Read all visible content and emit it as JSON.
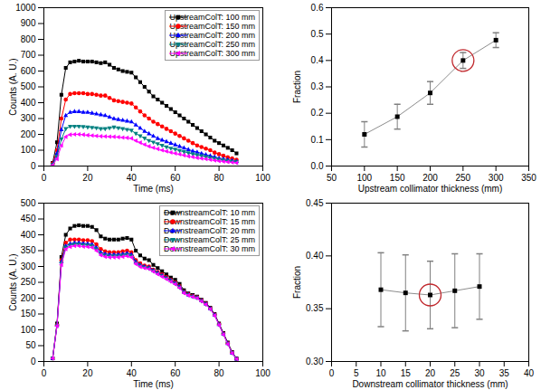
{
  "chart_data": [
    {
      "type": "line",
      "x_label": "Time (ms)",
      "y_label": "Counts (A. U.)",
      "xlim": [
        0,
        100
      ],
      "xticks": [
        0,
        20,
        40,
        60,
        80,
        100
      ],
      "ylim": [
        0,
        1000
      ],
      "yticks": [
        0,
        100,
        200,
        300,
        400,
        500,
        600,
        700,
        800,
        900,
        1000
      ],
      "grid": false,
      "legend": "top-right",
      "x": [
        4,
        6,
        8,
        10,
        12,
        14,
        16,
        18,
        20,
        22,
        24,
        26,
        28,
        30,
        32,
        34,
        36,
        38,
        40,
        42,
        44,
        46,
        48,
        50,
        52,
        54,
        56,
        58,
        60,
        62,
        64,
        66,
        68,
        70,
        72,
        74,
        76,
        78,
        80,
        82,
        84,
        86,
        88
      ],
      "series": [
        {
          "name": "UpstreamColT: 100 mm",
          "color": "#000000",
          "marker": "square",
          "values": [
            20,
            150,
            450,
            620,
            655,
            660,
            665,
            660,
            660,
            660,
            655,
            650,
            655,
            640,
            620,
            610,
            600,
            595,
            590,
            560,
            530,
            500,
            470,
            440,
            420,
            400,
            380,
            360,
            340,
            320,
            300,
            280,
            260,
            240,
            220,
            200,
            180,
            160,
            145,
            130,
            115,
            100,
            80
          ]
        },
        {
          "name": "UpstreamColT: 150 mm",
          "color": "#ff0000",
          "marker": "circle",
          "values": [
            15,
            100,
            300,
            420,
            455,
            460,
            460,
            460,
            455,
            455,
            450,
            445,
            445,
            430,
            415,
            410,
            405,
            400,
            395,
            370,
            345,
            320,
            300,
            280,
            265,
            250,
            235,
            220,
            205,
            190,
            175,
            160,
            145,
            130,
            120,
            110,
            100,
            85,
            75,
            65,
            55,
            48,
            40
          ]
        },
        {
          "name": "UpstreamColT: 200 mm",
          "color": "#0000ff",
          "marker": "triangle-up",
          "values": [
            10,
            80,
            230,
            320,
            340,
            345,
            345,
            340,
            340,
            335,
            330,
            325,
            320,
            310,
            300,
            295,
            290,
            285,
            280,
            260,
            240,
            220,
            205,
            190,
            175,
            165,
            155,
            145,
            135,
            125,
            115,
            105,
            95,
            88,
            80,
            72,
            65,
            58,
            50,
            45,
            40,
            35,
            30
          ]
        },
        {
          "name": "UpstreamColT: 250 mm",
          "color": "#008080",
          "marker": "triangle-down",
          "values": [
            8,
            60,
            170,
            235,
            250,
            250,
            250,
            248,
            245,
            243,
            240,
            235,
            235,
            240,
            245,
            240,
            235,
            230,
            225,
            205,
            190,
            175,
            160,
            150,
            140,
            130,
            120,
            112,
            105,
            97,
            90,
            83,
            76,
            70,
            64,
            58,
            52,
            47,
            42,
            37,
            33,
            29,
            25
          ]
        },
        {
          "name": "UpstreamColT: 300 mm",
          "color": "#ff00ff",
          "marker": "triangle-left",
          "values": [
            6,
            45,
            130,
            185,
            198,
            200,
            200,
            198,
            195,
            193,
            190,
            188,
            187,
            186,
            185,
            183,
            180,
            178,
            175,
            160,
            148,
            136,
            125,
            116,
            108,
            100,
            93,
            86,
            80,
            74,
            68,
            62,
            57,
            52,
            48,
            44,
            40,
            36,
            32,
            29,
            26,
            23,
            20
          ]
        }
      ]
    },
    {
      "type": "line",
      "x_label": "Upstream collimator thickness (mm)",
      "y_label": "Fraction",
      "xlim": [
        50,
        350
      ],
      "xticks": [
        50,
        100,
        150,
        200,
        250,
        300,
        350
      ],
      "ylim": [
        0,
        0.6
      ],
      "yticks": [
        {
          "value": 0,
          "label": "0.0"
        },
        0.1,
        0.2,
        0.3,
        0.4,
        0.5,
        0.6
      ],
      "grid": false,
      "x": [
        100,
        150,
        200,
        250,
        300
      ],
      "series": [
        {
          "color": "#000000",
          "marker": "square",
          "values": [
            0.12,
            0.187,
            0.277,
            0.4,
            0.477
          ],
          "errors": [
            0.048,
            0.047,
            0.043,
            0.03,
            0.028
          ]
        }
      ],
      "highlight_x": 250
    },
    {
      "type": "line",
      "x_label": "Time (ms)",
      "y_label": "Counts (A. U.)",
      "xlim": [
        0,
        100
      ],
      "xticks": [
        0,
        20,
        40,
        60,
        80,
        100
      ],
      "ylim": [
        0,
        500
      ],
      "yticks": [
        0,
        50,
        100,
        150,
        200,
        250,
        300,
        350,
        400,
        450,
        500
      ],
      "grid": false,
      "legend": "top-right",
      "x": [
        4,
        6,
        8,
        10,
        12,
        14,
        16,
        18,
        20,
        22,
        24,
        26,
        28,
        30,
        32,
        34,
        36,
        38,
        40,
        42,
        44,
        46,
        48,
        50,
        52,
        54,
        56,
        58,
        60,
        62,
        64,
        66,
        68,
        70,
        72,
        74,
        76,
        78,
        80,
        82,
        84,
        86,
        88
      ],
      "series": [
        {
          "name": "DownstreamColT: 10 mm",
          "color": "#000000",
          "marker": "square",
          "values": [
            10,
            120,
            330,
            400,
            420,
            428,
            430,
            428,
            428,
            425,
            415,
            395,
            388,
            385,
            385,
            385,
            388,
            390,
            385,
            350,
            335,
            325,
            320,
            305,
            295,
            285,
            275,
            265,
            258,
            245,
            225,
            215,
            210,
            205,
            195,
            185,
            170,
            150,
            120,
            90,
            60,
            30,
            10
          ]
        },
        {
          "name": "DownstreamColT: 15 mm",
          "color": "#ff0000",
          "marker": "circle",
          "values": [
            10,
            115,
            320,
            375,
            385,
            385,
            385,
            383,
            383,
            380,
            370,
            355,
            348,
            345,
            345,
            345,
            348,
            350,
            345,
            320,
            310,
            303,
            300,
            290,
            282,
            275,
            266,
            258,
            250,
            238,
            220,
            212,
            207,
            203,
            193,
            183,
            168,
            148,
            118,
            88,
            58,
            28,
            8
          ]
        },
        {
          "name": "DownstreamColT: 20 mm",
          "color": "#0000ff",
          "marker": "triangle-up",
          "values": [
            10,
            115,
            315,
            365,
            372,
            375,
            375,
            373,
            372,
            370,
            360,
            345,
            340,
            338,
            338,
            338,
            340,
            342,
            338,
            315,
            305,
            300,
            297,
            288,
            280,
            272,
            264,
            256,
            248,
            236,
            219,
            211,
            206,
            202,
            192,
            182,
            167,
            147,
            117,
            87,
            57,
            27,
            8
          ]
        },
        {
          "name": "DownstreamColT: 25 mm",
          "color": "#008080",
          "marker": "triangle-down",
          "values": [
            10,
            113,
            310,
            360,
            367,
            370,
            370,
            368,
            367,
            365,
            355,
            340,
            335,
            333,
            333,
            333,
            335,
            337,
            333,
            311,
            302,
            297,
            294,
            286,
            278,
            270,
            262,
            254,
            246,
            234,
            218,
            210,
            205,
            201,
            191,
            181,
            166,
            146,
            116,
            86,
            56,
            27,
            8
          ]
        },
        {
          "name": "DownstreamColT: 30 mm",
          "color": "#ff00ff",
          "marker": "triangle-left",
          "values": [
            10,
            112,
            305,
            355,
            362,
            365,
            365,
            363,
            362,
            360,
            350,
            336,
            331,
            329,
            329,
            329,
            331,
            333,
            329,
            308,
            299,
            295,
            292,
            284,
            276,
            268,
            260,
            252,
            244,
            232,
            216,
            209,
            204,
            200,
            190,
            180,
            165,
            145,
            115,
            85,
            55,
            26,
            8
          ]
        }
      ]
    },
    {
      "type": "line",
      "x_label": "Downstream collimator thickness (mm)",
      "y_label": "Fraction",
      "xlim": [
        0,
        40
      ],
      "xticks": [
        0,
        5,
        10,
        15,
        20,
        25,
        30,
        35,
        40
      ],
      "ylim": [
        0.3,
        0.45
      ],
      "yticks": [
        {
          "value": 0.3,
          "label": "0.30"
        },
        0.35,
        {
          "value": 0.4,
          "label": "0.40"
        },
        0.45
      ],
      "grid": false,
      "x": [
        10,
        15,
        20,
        25,
        30
      ],
      "series": [
        {
          "color": "#000000",
          "marker": "square",
          "values": [
            0.368,
            0.365,
            0.363,
            0.367,
            0.371
          ],
          "errors": [
            0.035,
            0.036,
            0.032,
            0.035,
            0.031
          ]
        }
      ],
      "highlight_x": 20
    }
  ]
}
